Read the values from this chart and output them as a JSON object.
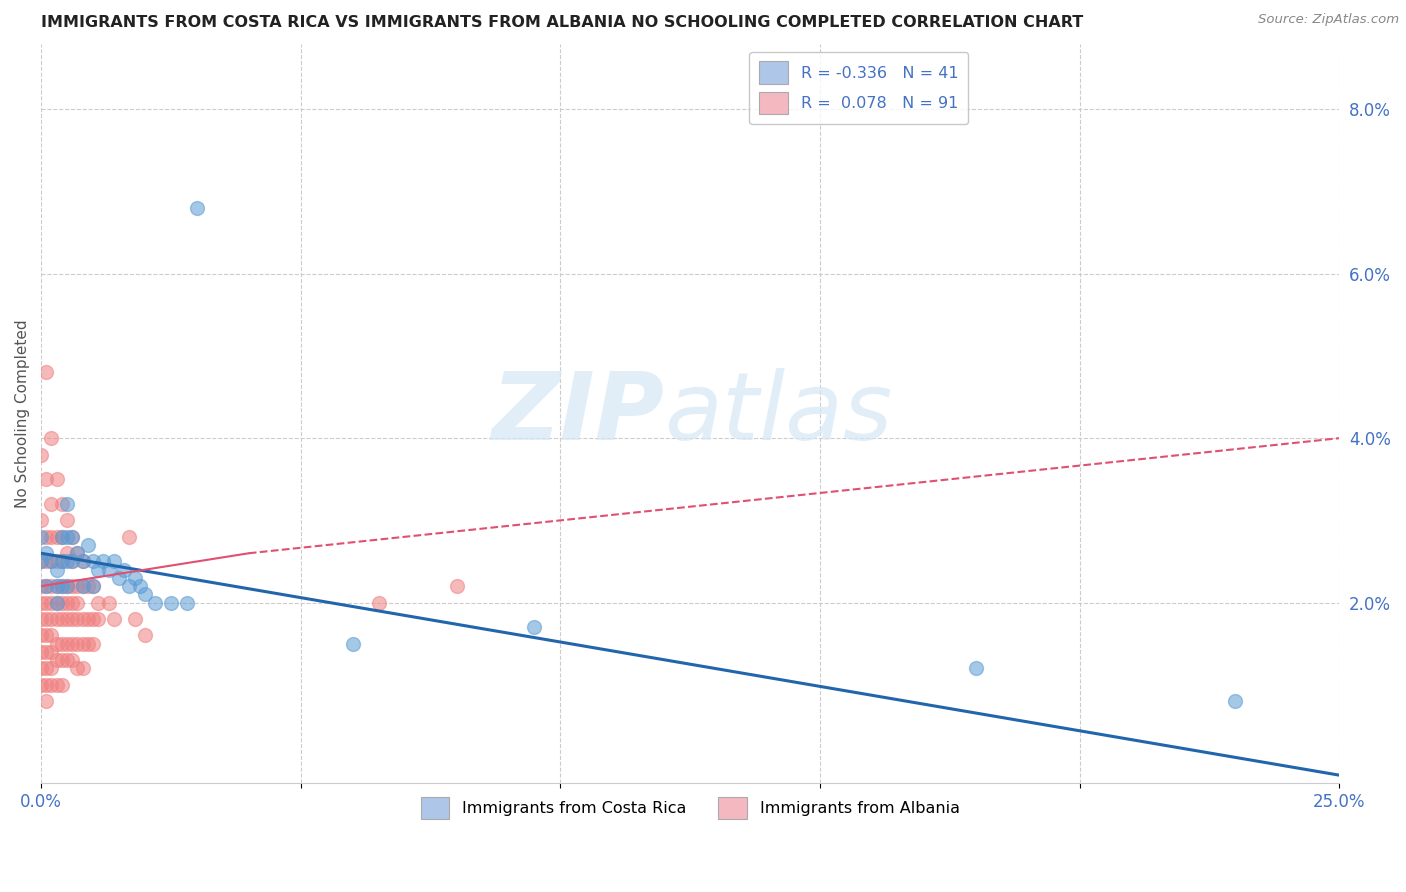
{
  "title": "IMMIGRANTS FROM COSTA RICA VS IMMIGRANTS FROM ALBANIA NO SCHOOLING COMPLETED CORRELATION CHART",
  "source": "Source: ZipAtlas.com",
  "ylabel": "No Schooling Completed",
  "right_yticks": [
    "2.0%",
    "4.0%",
    "6.0%",
    "8.0%"
  ],
  "right_ytick_vals": [
    0.02,
    0.04,
    0.06,
    0.08
  ],
  "xlim": [
    0.0,
    0.25
  ],
  "ylim": [
    -0.002,
    0.088
  ],
  "legend_entries": [
    {
      "label": "R = -0.336   N = 41",
      "color": "#aec6e8"
    },
    {
      "label": "R =  0.078   N = 91",
      "color": "#f4b8c1"
    }
  ],
  "watermark_zip": "ZIP",
  "watermark_atlas": "atlas",
  "background_color": "#ffffff",
  "grid_color": "#cccccc",
  "costa_rica_color": "#5b9bd5",
  "albania_color": "#f08080",
  "costa_rica_trend_color": "#2166ac",
  "albania_trend_color": "#e05070",
  "costa_rica_points": [
    [
      0.0,
      0.025
    ],
    [
      0.0,
      0.028
    ],
    [
      0.001,
      0.026
    ],
    [
      0.001,
      0.022
    ],
    [
      0.002,
      0.025
    ],
    [
      0.003,
      0.024
    ],
    [
      0.003,
      0.022
    ],
    [
      0.003,
      0.02
    ],
    [
      0.004,
      0.028
    ],
    [
      0.004,
      0.025
    ],
    [
      0.004,
      0.022
    ],
    [
      0.005,
      0.032
    ],
    [
      0.005,
      0.028
    ],
    [
      0.005,
      0.025
    ],
    [
      0.005,
      0.022
    ],
    [
      0.006,
      0.028
    ],
    [
      0.006,
      0.025
    ],
    [
      0.007,
      0.026
    ],
    [
      0.008,
      0.025
    ],
    [
      0.008,
      0.022
    ],
    [
      0.009,
      0.027
    ],
    [
      0.01,
      0.025
    ],
    [
      0.01,
      0.022
    ],
    [
      0.011,
      0.024
    ],
    [
      0.012,
      0.025
    ],
    [
      0.013,
      0.024
    ],
    [
      0.014,
      0.025
    ],
    [
      0.015,
      0.023
    ],
    [
      0.016,
      0.024
    ],
    [
      0.017,
      0.022
    ],
    [
      0.018,
      0.023
    ],
    [
      0.019,
      0.022
    ],
    [
      0.02,
      0.021
    ],
    [
      0.022,
      0.02
    ],
    [
      0.025,
      0.02
    ],
    [
      0.028,
      0.02
    ],
    [
      0.03,
      0.068
    ],
    [
      0.06,
      0.015
    ],
    [
      0.095,
      0.017
    ],
    [
      0.18,
      0.012
    ],
    [
      0.23,
      0.008
    ]
  ],
  "albania_points": [
    [
      0.0,
      0.038
    ],
    [
      0.0,
      0.03
    ],
    [
      0.0,
      0.025
    ],
    [
      0.0,
      0.022
    ],
    [
      0.0,
      0.02
    ],
    [
      0.0,
      0.018
    ],
    [
      0.0,
      0.016
    ],
    [
      0.0,
      0.014
    ],
    [
      0.0,
      0.012
    ],
    [
      0.0,
      0.01
    ],
    [
      0.001,
      0.048
    ],
    [
      0.001,
      0.035
    ],
    [
      0.001,
      0.028
    ],
    [
      0.001,
      0.025
    ],
    [
      0.001,
      0.022
    ],
    [
      0.001,
      0.02
    ],
    [
      0.001,
      0.018
    ],
    [
      0.001,
      0.016
    ],
    [
      0.001,
      0.014
    ],
    [
      0.001,
      0.012
    ],
    [
      0.001,
      0.01
    ],
    [
      0.001,
      0.008
    ],
    [
      0.002,
      0.04
    ],
    [
      0.002,
      0.032
    ],
    [
      0.002,
      0.028
    ],
    [
      0.002,
      0.025
    ],
    [
      0.002,
      0.022
    ],
    [
      0.002,
      0.02
    ],
    [
      0.002,
      0.018
    ],
    [
      0.002,
      0.016
    ],
    [
      0.002,
      0.014
    ],
    [
      0.002,
      0.012
    ],
    [
      0.002,
      0.01
    ],
    [
      0.003,
      0.035
    ],
    [
      0.003,
      0.028
    ],
    [
      0.003,
      0.025
    ],
    [
      0.003,
      0.022
    ],
    [
      0.003,
      0.02
    ],
    [
      0.003,
      0.018
    ],
    [
      0.003,
      0.015
    ],
    [
      0.003,
      0.013
    ],
    [
      0.003,
      0.01
    ],
    [
      0.004,
      0.032
    ],
    [
      0.004,
      0.028
    ],
    [
      0.004,
      0.025
    ],
    [
      0.004,
      0.022
    ],
    [
      0.004,
      0.02
    ],
    [
      0.004,
      0.018
    ],
    [
      0.004,
      0.015
    ],
    [
      0.004,
      0.013
    ],
    [
      0.004,
      0.01
    ],
    [
      0.005,
      0.03
    ],
    [
      0.005,
      0.026
    ],
    [
      0.005,
      0.022
    ],
    [
      0.005,
      0.02
    ],
    [
      0.005,
      0.018
    ],
    [
      0.005,
      0.015
    ],
    [
      0.005,
      0.013
    ],
    [
      0.006,
      0.028
    ],
    [
      0.006,
      0.025
    ],
    [
      0.006,
      0.022
    ],
    [
      0.006,
      0.02
    ],
    [
      0.006,
      0.018
    ],
    [
      0.006,
      0.015
    ],
    [
      0.006,
      0.013
    ],
    [
      0.007,
      0.026
    ],
    [
      0.007,
      0.022
    ],
    [
      0.007,
      0.02
    ],
    [
      0.007,
      0.018
    ],
    [
      0.007,
      0.015
    ],
    [
      0.007,
      0.012
    ],
    [
      0.008,
      0.025
    ],
    [
      0.008,
      0.022
    ],
    [
      0.008,
      0.018
    ],
    [
      0.008,
      0.015
    ],
    [
      0.008,
      0.012
    ],
    [
      0.009,
      0.022
    ],
    [
      0.009,
      0.018
    ],
    [
      0.009,
      0.015
    ],
    [
      0.01,
      0.022
    ],
    [
      0.01,
      0.018
    ],
    [
      0.01,
      0.015
    ],
    [
      0.011,
      0.02
    ],
    [
      0.011,
      0.018
    ],
    [
      0.013,
      0.02
    ],
    [
      0.014,
      0.018
    ],
    [
      0.017,
      0.028
    ],
    [
      0.018,
      0.018
    ],
    [
      0.02,
      0.016
    ],
    [
      0.065,
      0.02
    ],
    [
      0.08,
      0.022
    ]
  ],
  "costa_rica_trend": {
    "x_start": 0.0,
    "x_end": 0.25,
    "y_start": 0.026,
    "y_end": -0.001
  },
  "albania_trend_solid": {
    "x_start": 0.0,
    "x_end": 0.04,
    "y_start": 0.022,
    "y_end": 0.026
  },
  "albania_trend_dashed": {
    "x_start": 0.04,
    "x_end": 0.25,
    "y_start": 0.026,
    "y_end": 0.04
  }
}
